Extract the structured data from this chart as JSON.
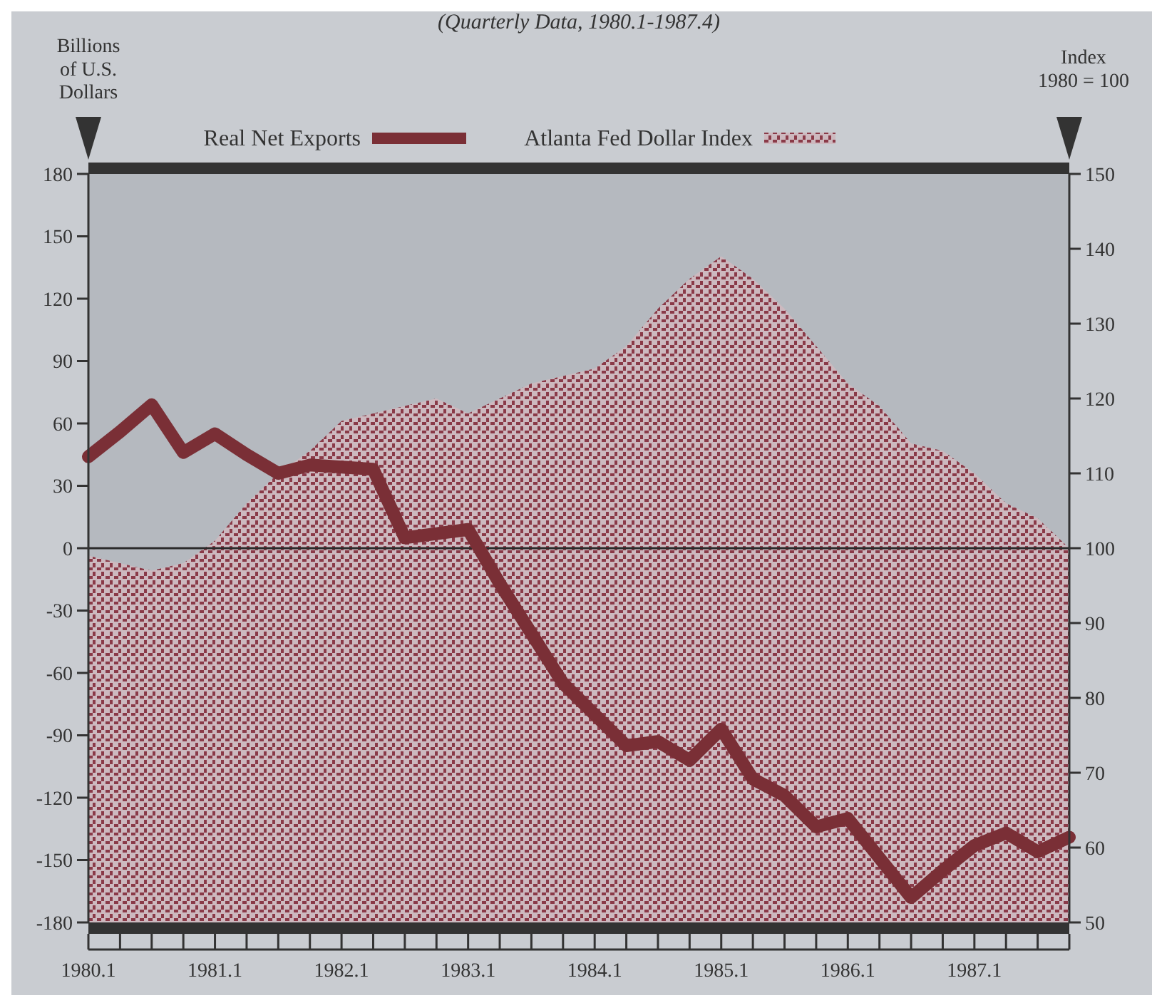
{
  "chart_data": {
    "type": "line",
    "subtitle": "(Quarterly Data, 1980.1-1987.4)",
    "ylabel": "Billions\nof U.S.\nDollars",
    "y2label": "Index\n1980 = 100",
    "categories": [
      "1980.1",
      null,
      null,
      null,
      "1981.1",
      null,
      null,
      null,
      "1982.1",
      null,
      null,
      null,
      "1983.1",
      null,
      null,
      null,
      "1984.1",
      null,
      null,
      null,
      "1985.1",
      null,
      null,
      null,
      "1986.1",
      null,
      null,
      null,
      "1987.1",
      null,
      null,
      null
    ],
    "ylim": [
      -180,
      180
    ],
    "yticks": [
      -180,
      -150,
      -120,
      -90,
      -60,
      -30,
      0,
      30,
      60,
      90,
      120,
      150,
      180
    ],
    "y2lim": [
      50,
      150
    ],
    "y2ticks": [
      50,
      60,
      70,
      80,
      90,
      100,
      110,
      120,
      130,
      140,
      150
    ],
    "legend": "top",
    "grid": false,
    "line_style": "solid",
    "ref_lines": [
      {
        "axis": "y",
        "value": 0,
        "color": "#2b2b2b"
      }
    ],
    "series": [
      {
        "name": "Atlanta Fed Dollar Index",
        "type": "area",
        "axis": "y2",
        "color": "#8a3a48",
        "values": [
          99,
          98,
          97,
          98,
          101,
          106,
          110,
          113,
          117,
          118,
          119,
          120,
          118,
          120,
          122,
          123,
          124,
          127,
          132,
          136,
          139,
          136,
          132,
          127,
          122,
          119,
          114,
          113,
          110,
          106,
          104,
          100
        ]
      },
      {
        "name": "Real Net Exports",
        "color": "#7a2f36",
        "values": [
          44,
          56,
          69,
          46,
          55,
          45,
          36,
          40,
          39,
          38,
          5,
          7,
          9,
          -17,
          -41,
          -65,
          -80,
          -95,
          -93,
          -102,
          -87,
          -111,
          -119,
          -134,
          -130,
          -149,
          -168,
          -155,
          -143,
          -137,
          -146,
          -139
        ]
      }
    ]
  }
}
